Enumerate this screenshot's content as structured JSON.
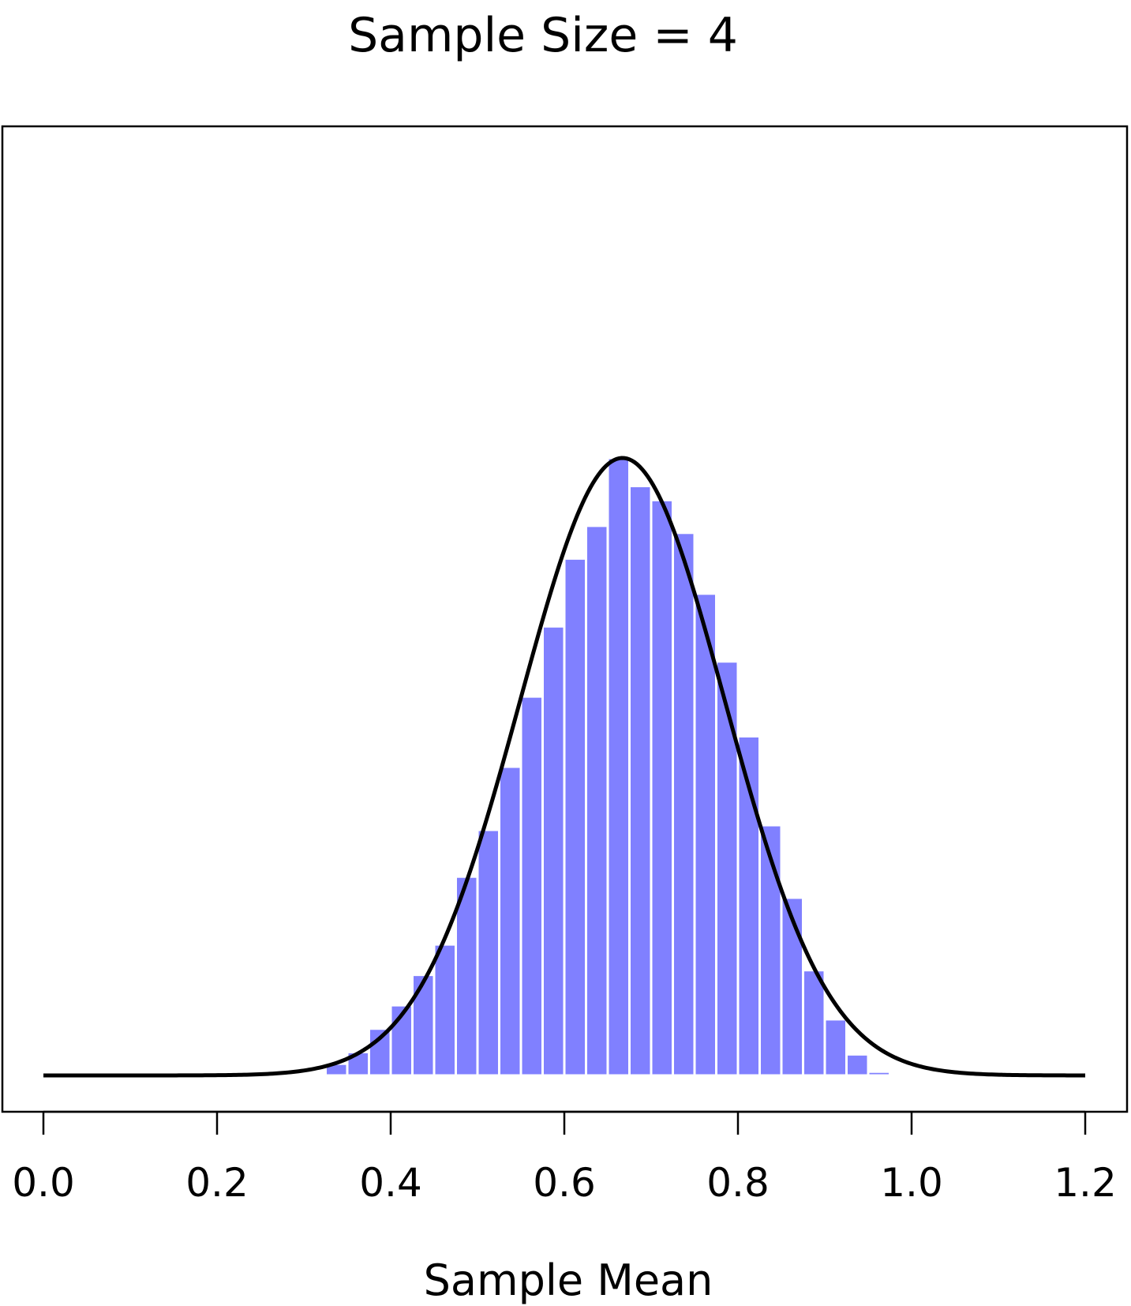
{
  "chart_data": {
    "type": "bar",
    "title": "Sample Size = 4",
    "xlabel": "Sample Mean",
    "ylabel": "",
    "xlim": [
      0.0,
      1.2
    ],
    "ylim": [
      0,
      1.32
    ],
    "x_ticks": [
      "0.0",
      "0.2",
      "0.4",
      "0.6",
      "0.8",
      "1.0",
      "1.2"
    ],
    "x_tick_values": [
      0.0,
      0.2,
      0.4,
      0.6,
      0.8,
      1.0,
      1.2
    ],
    "bin_width": 0.025,
    "bins": [
      {
        "x0": 0.3,
        "x1": 0.325,
        "value": 0.005
      },
      {
        "x0": 0.325,
        "x1": 0.35,
        "value": 0.025
      },
      {
        "x0": 0.35,
        "x1": 0.375,
        "value": 0.05
      },
      {
        "x0": 0.375,
        "x1": 0.4,
        "value": 0.1
      },
      {
        "x0": 0.4,
        "x1": 0.425,
        "value": 0.15
      },
      {
        "x0": 0.425,
        "x1": 0.45,
        "value": 0.215
      },
      {
        "x0": 0.45,
        "x1": 0.475,
        "value": 0.28
      },
      {
        "x0": 0.475,
        "x1": 0.5,
        "value": 0.425
      },
      {
        "x0": 0.5,
        "x1": 0.525,
        "value": 0.525
      },
      {
        "x0": 0.525,
        "x1": 0.55,
        "value": 0.66
      },
      {
        "x0": 0.55,
        "x1": 0.575,
        "value": 0.81
      },
      {
        "x0": 0.575,
        "x1": 0.6,
        "value": 0.96
      },
      {
        "x0": 0.6,
        "x1": 0.625,
        "value": 1.105
      },
      {
        "x0": 0.625,
        "x1": 0.65,
        "value": 1.175
      },
      {
        "x0": 0.65,
        "x1": 0.675,
        "value": 1.32
      },
      {
        "x0": 0.675,
        "x1": 0.7,
        "value": 1.26
      },
      {
        "x0": 0.7,
        "x1": 0.725,
        "value": 1.23
      },
      {
        "x0": 0.725,
        "x1": 0.75,
        "value": 1.16
      },
      {
        "x0": 0.75,
        "x1": 0.775,
        "value": 1.03
      },
      {
        "x0": 0.775,
        "x1": 0.8,
        "value": 0.885
      },
      {
        "x0": 0.8,
        "x1": 0.825,
        "value": 0.725
      },
      {
        "x0": 0.825,
        "x1": 0.85,
        "value": 0.535
      },
      {
        "x0": 0.85,
        "x1": 0.875,
        "value": 0.38
      },
      {
        "x0": 0.875,
        "x1": 0.9,
        "value": 0.225
      },
      {
        "x0": 0.9,
        "x1": 0.925,
        "value": 0.12
      },
      {
        "x0": 0.925,
        "x1": 0.95,
        "value": 0.045
      },
      {
        "x0": 0.95,
        "x1": 0.975,
        "value": 0.008
      }
    ],
    "curve": {
      "type": "normal-density",
      "mean": 0.667,
      "sd": 0.118,
      "x_range": [
        0.0,
        1.2
      ]
    },
    "grid": false,
    "colors": {
      "bars": "#8080ff",
      "bar_edges": "#ffffff",
      "curve": "#000000",
      "frame": "#000000"
    }
  }
}
